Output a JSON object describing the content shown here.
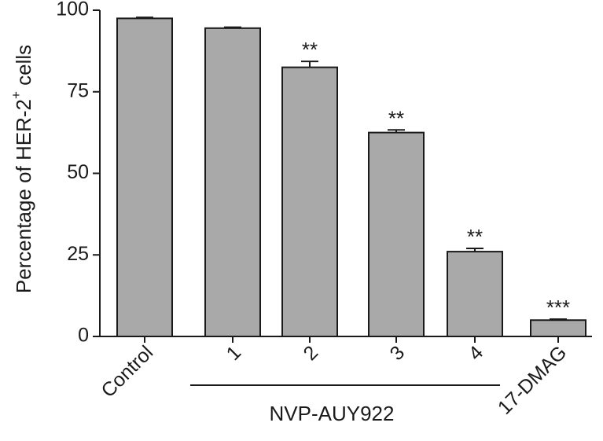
{
  "chart_data": {
    "type": "bar",
    "ylabel_main": "Percentage of HER-2",
    "ylabel_sup": "+",
    "ylabel_tail": " cells",
    "ylim": [
      0,
      100
    ],
    "yticks": [
      "0",
      "25",
      "50",
      "75",
      "100"
    ],
    "ytick_values": [
      0,
      25,
      50,
      75,
      100
    ],
    "categories": [
      "Control",
      "1",
      "2",
      "3",
      "4",
      "17-DMAG"
    ],
    "values": [
      97.5,
      94.5,
      82.5,
      62.5,
      26,
      5
    ],
    "errors": [
      0.3,
      0.3,
      1.8,
      0.8,
      1.0,
      0.3
    ],
    "significance": [
      "",
      "",
      "**",
      "**",
      "**",
      "***"
    ],
    "group_label": "NVP-AUY922",
    "bar_color": "#a9a9a9",
    "edge_color": "#1a1a1a",
    "grid": false
  }
}
